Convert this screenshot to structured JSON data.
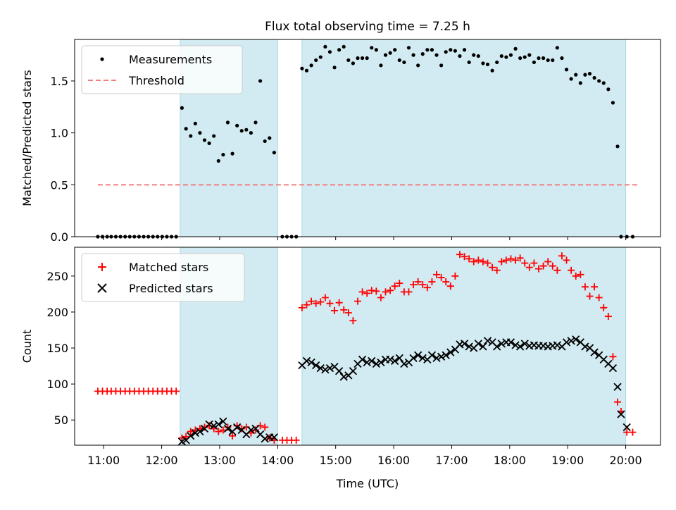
{
  "title": "Flux total observing time = 7.25 h",
  "chart_data": [
    {
      "type": "scatter",
      "ylabel": "Matched/Predicted stars",
      "xlim": [
        10.5,
        20.6
      ],
      "ylim": [
        0,
        1.9
      ],
      "yticks": [
        0.0,
        0.5,
        1.0,
        1.5
      ],
      "ytick_labels": [
        "0.0",
        "0.5",
        "1.0",
        "1.5"
      ],
      "shaded_intervals": [
        [
          12.32,
          14.0
        ],
        [
          14.42,
          20.0
        ]
      ],
      "shade_color": "#add8e6",
      "legend": {
        "position": "top-left",
        "entries": [
          "Measurements",
          "Threshold"
        ]
      },
      "threshold": {
        "name": "Threshold",
        "value": 0.5,
        "x_range": [
          10.9,
          20.2
        ],
        "color": "#f08080"
      },
      "series": [
        {
          "name": "Measurements",
          "color": "#000000",
          "x": [
            10.9,
            10.98,
            11.06,
            11.13,
            11.21,
            11.29,
            11.37,
            11.45,
            11.53,
            11.61,
            11.69,
            11.77,
            11.85,
            11.93,
            12.01,
            12.09,
            12.17,
            12.25,
            12.35,
            12.42,
            12.5,
            12.58,
            12.66,
            12.74,
            12.82,
            12.9,
            12.98,
            13.06,
            13.14,
            13.22,
            13.3,
            13.38,
            13.46,
            13.54,
            13.62,
            13.7,
            13.78,
            13.86,
            13.94,
            14.08,
            14.16,
            14.24,
            14.32,
            14.42,
            14.5,
            14.58,
            14.66,
            14.74,
            14.82,
            14.9,
            14.98,
            15.06,
            15.14,
            15.22,
            15.3,
            15.38,
            15.46,
            15.54,
            15.62,
            15.7,
            15.78,
            15.86,
            15.94,
            16.02,
            16.1,
            16.18,
            16.26,
            16.34,
            16.42,
            16.5,
            16.58,
            16.66,
            16.74,
            16.82,
            16.9,
            16.98,
            17.06,
            17.14,
            17.22,
            17.3,
            17.38,
            17.46,
            17.54,
            17.62,
            17.7,
            17.78,
            17.86,
            17.94,
            18.02,
            18.1,
            18.18,
            18.26,
            18.34,
            18.42,
            18.5,
            18.58,
            18.66,
            18.74,
            18.82,
            18.9,
            18.98,
            19.06,
            19.14,
            19.22,
            19.3,
            19.38,
            19.46,
            19.54,
            19.62,
            19.7,
            19.78,
            19.86,
            19.92,
            20.02,
            20.12
          ],
          "y": [
            0,
            0,
            0,
            0,
            0,
            0,
            0,
            0,
            0,
            0,
            0,
            0,
            0,
            0,
            0,
            0,
            0,
            0,
            1.24,
            1.04,
            0.97,
            1.09,
            1.0,
            0.93,
            0.9,
            0.97,
            0.73,
            0.79,
            1.1,
            0.8,
            1.07,
            1.02,
            1.03,
            1.0,
            1.1,
            1.5,
            0.92,
            0.95,
            0.81,
            0,
            0,
            0,
            0,
            1.62,
            1.6,
            1.65,
            1.7,
            1.73,
            1.83,
            1.78,
            1.63,
            1.8,
            1.83,
            1.7,
            1.67,
            1.72,
            1.72,
            1.72,
            1.82,
            1.8,
            1.65,
            1.75,
            1.77,
            1.8,
            1.7,
            1.68,
            1.82,
            1.75,
            1.65,
            1.76,
            1.8,
            1.8,
            1.75,
            1.65,
            1.78,
            1.8,
            1.79,
            1.74,
            1.8,
            1.68,
            1.75,
            1.74,
            1.67,
            1.66,
            1.6,
            1.68,
            1.74,
            1.73,
            1.75,
            1.81,
            1.72,
            1.73,
            1.75,
            1.68,
            1.72,
            1.72,
            1.7,
            1.7,
            1.82,
            1.72,
            1.61,
            1.52,
            1.56,
            1.48,
            1.56,
            1.57,
            1.53,
            1.5,
            1.48,
            1.42,
            1.29,
            0.87,
            0,
            0,
            0
          ]
        }
      ]
    },
    {
      "type": "scatter",
      "xlabel": "Time (UTC)",
      "ylabel": "Count",
      "xlim": [
        10.5,
        20.6
      ],
      "ylim": [
        15,
        290
      ],
      "xticks": [
        11,
        12,
        13,
        14,
        15,
        16,
        17,
        18,
        19,
        20
      ],
      "xtick_labels": [
        "11:00",
        "12:00",
        "13:00",
        "14:00",
        "15:00",
        "16:00",
        "17:00",
        "18:00",
        "19:00",
        "20:00"
      ],
      "yticks": [
        50,
        100,
        150,
        200,
        250
      ],
      "ytick_labels": [
        "50",
        "100",
        "150",
        "200",
        "250"
      ],
      "shaded_intervals": [
        [
          12.32,
          14.0
        ],
        [
          14.42,
          20.0
        ]
      ],
      "shade_color": "#add8e6",
      "legend": {
        "position": "top-left",
        "entries": [
          "Matched stars",
          "Predicted stars"
        ]
      },
      "series": [
        {
          "name": "Matched stars",
          "marker": "plus",
          "color": "#ff0000",
          "x": [
            10.9,
            10.98,
            11.06,
            11.13,
            11.21,
            11.29,
            11.37,
            11.45,
            11.53,
            11.61,
            11.69,
            11.77,
            11.85,
            11.93,
            12.01,
            12.09,
            12.17,
            12.25,
            12.35,
            12.42,
            12.5,
            12.58,
            12.66,
            12.74,
            12.82,
            12.9,
            12.98,
            13.06,
            13.14,
            13.22,
            13.3,
            13.38,
            13.46,
            13.54,
            13.62,
            13.7,
            13.78,
            13.86,
            13.94,
            14.08,
            14.16,
            14.24,
            14.32,
            14.42,
            14.5,
            14.58,
            14.66,
            14.74,
            14.82,
            14.9,
            14.98,
            15.06,
            15.14,
            15.22,
            15.3,
            15.38,
            15.46,
            15.54,
            15.62,
            15.7,
            15.78,
            15.86,
            15.94,
            16.02,
            16.1,
            16.18,
            16.26,
            16.34,
            16.42,
            16.5,
            16.58,
            16.66,
            16.74,
            16.82,
            16.9,
            16.98,
            17.06,
            17.14,
            17.22,
            17.3,
            17.38,
            17.46,
            17.54,
            17.62,
            17.7,
            17.78,
            17.86,
            17.94,
            18.02,
            18.1,
            18.18,
            18.26,
            18.34,
            18.42,
            18.5,
            18.58,
            18.66,
            18.74,
            18.82,
            18.9,
            18.98,
            19.06,
            19.14,
            19.22,
            19.3,
            19.38,
            19.46,
            19.54,
            19.62,
            19.7,
            19.78,
            19.86,
            19.92,
            20.02,
            20.12
          ],
          "y": [
            90,
            90,
            90,
            90,
            90,
            90,
            90,
            90,
            90,
            90,
            90,
            90,
            90,
            90,
            90,
            90,
            90,
            90,
            25,
            27,
            34,
            36,
            38,
            40,
            42,
            38,
            34,
            36,
            40,
            28,
            42,
            38,
            40,
            32,
            36,
            42,
            40,
            25,
            22,
            22,
            22,
            22,
            22,
            206,
            210,
            215,
            212,
            214,
            220,
            212,
            202,
            213,
            203,
            199,
            188,
            215,
            228,
            226,
            230,
            229,
            220,
            228,
            230,
            236,
            240,
            228,
            228,
            238,
            242,
            238,
            234,
            242,
            252,
            248,
            242,
            236,
            250,
            280,
            277,
            274,
            270,
            272,
            270,
            268,
            262,
            258,
            270,
            272,
            274,
            272,
            275,
            268,
            262,
            268,
            260,
            264,
            270,
            264,
            258,
            278,
            272,
            258,
            250,
            252,
            235,
            222,
            235,
            220,
            206,
            194,
            138,
            75,
            62,
            33,
            33
          ]
        },
        {
          "name": "Predicted stars",
          "marker": "x",
          "color": "#000000",
          "x": [
            12.35,
            12.42,
            12.5,
            12.58,
            12.66,
            12.74,
            12.82,
            12.9,
            12.98,
            13.06,
            13.14,
            13.22,
            13.3,
            13.38,
            13.46,
            13.54,
            13.62,
            13.7,
            13.78,
            13.86,
            13.94,
            14.42,
            14.5,
            14.58,
            14.66,
            14.74,
            14.82,
            14.9,
            14.98,
            15.06,
            15.14,
            15.22,
            15.3,
            15.38,
            15.46,
            15.54,
            15.62,
            15.7,
            15.78,
            15.86,
            15.94,
            16.02,
            16.1,
            16.18,
            16.26,
            16.34,
            16.42,
            16.5,
            16.58,
            16.66,
            16.74,
            16.82,
            16.9,
            16.98,
            17.06,
            17.14,
            17.22,
            17.3,
            17.38,
            17.46,
            17.54,
            17.62,
            17.7,
            17.78,
            17.86,
            17.94,
            18.02,
            18.1,
            18.18,
            18.26,
            18.34,
            18.42,
            18.5,
            18.58,
            18.66,
            18.74,
            18.82,
            18.9,
            18.98,
            19.06,
            19.14,
            19.22,
            19.3,
            19.38,
            19.46,
            19.54,
            19.62,
            19.7,
            19.78,
            19.86,
            19.92,
            20.02
          ],
          "y": [
            20,
            22,
            28,
            32,
            34,
            38,
            44,
            42,
            44,
            48,
            38,
            34,
            40,
            36,
            30,
            36,
            38,
            30,
            24,
            26,
            26,
            126,
            132,
            130,
            126,
            122,
            120,
            122,
            124,
            118,
            110,
            112,
            118,
            128,
            134,
            130,
            132,
            128,
            130,
            134,
            134,
            132,
            136,
            128,
            130,
            136,
            140,
            136,
            134,
            140,
            136,
            138,
            140,
            144,
            148,
            155,
            156,
            152,
            150,
            156,
            152,
            160,
            158,
            152,
            156,
            158,
            158,
            154,
            152,
            156,
            153,
            154,
            153,
            153,
            152,
            153,
            154,
            152,
            158,
            160,
            162,
            158,
            152,
            150,
            144,
            140,
            134,
            128,
            122,
            96,
            58,
            40
          ]
        }
      ]
    }
  ]
}
